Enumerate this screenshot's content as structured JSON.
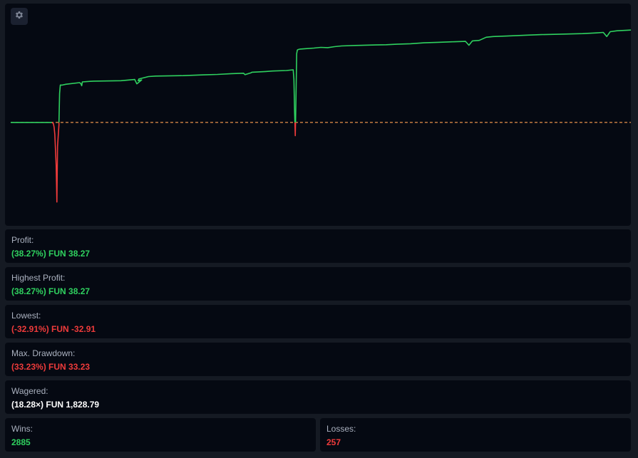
{
  "settings": {
    "icon": "gear-icon"
  },
  "chart_data": {
    "type": "line",
    "title": "",
    "xlabel": "",
    "ylabel": "",
    "baseline": 0,
    "ylim": [
      -34,
      41
    ],
    "colors": {
      "positive": "#2fd15f",
      "negative": "#ef3b3b",
      "baseline": "#e8914a"
    },
    "x": [
      0,
      30,
      60,
      62,
      63,
      64,
      66,
      67,
      68,
      70,
      71,
      72,
      73,
      74,
      75,
      80,
      100,
      102,
      103,
      104,
      120,
      160,
      180,
      183,
      190,
      185,
      186,
      200,
      210,
      250,
      280,
      300,
      320,
      338,
      340,
      349,
      350,
      370,
      380,
      400,
      410,
      411,
      412,
      413,
      414,
      415,
      416,
      417,
      420,
      430,
      440,
      450,
      460,
      470,
      480,
      500,
      530,
      545,
      560,
      580,
      600,
      620,
      640,
      660,
      665,
      670,
      680,
      690,
      700,
      720,
      750,
      770,
      800,
      830,
      850,
      860,
      865,
      870,
      880,
      900
    ],
    "y": [
      0,
      0,
      0,
      -0.5,
      -2,
      -5,
      -18,
      -33,
      -10,
      -1,
      12,
      15.5,
      15.5,
      15.5,
      15.5,
      15.8,
      16.5,
      16,
      15.2,
      16.8,
      17.1,
      17.3,
      17.8,
      16,
      17.6,
      17.3,
      18,
      19,
      19.2,
      19.4,
      19.7,
      19.9,
      20.2,
      20.4,
      19.8,
      20.6,
      20.8,
      21.1,
      21.3,
      21.5,
      21.8,
      18,
      4,
      -5.5,
      10,
      28.5,
      30,
      30.2,
      30.4,
      30.6,
      30.8,
      31.1,
      31,
      31.4,
      31.7,
      31.9,
      32.1,
      32.2,
      32.4,
      32.6,
      33,
      33.2,
      33.4,
      33.6,
      32,
      33.8,
      34,
      35.3,
      35.6,
      35.8,
      36.2,
      36.4,
      36.6,
      36.8,
      37.1,
      37.3,
      35.6,
      37.6,
      38,
      38.27
    ]
  },
  "stats": {
    "profit": {
      "label": "Profit:",
      "value": "(38.27%) FUN 38.27"
    },
    "highest_profit": {
      "label": "Highest Profit:",
      "value": "(38.27%) FUN 38.27"
    },
    "lowest": {
      "label": "Lowest:",
      "value": "(-32.91%) FUN -32.91"
    },
    "max_drawdown": {
      "label": "Max. Drawdown:",
      "value": "(33.23%) FUN 33.23"
    },
    "wagered": {
      "label": "Wagered:",
      "value": "(18.28×) FUN 1,828.79"
    },
    "wins": {
      "label": "Wins:",
      "value": "2885"
    },
    "losses": {
      "label": "Losses:",
      "value": "257"
    }
  }
}
